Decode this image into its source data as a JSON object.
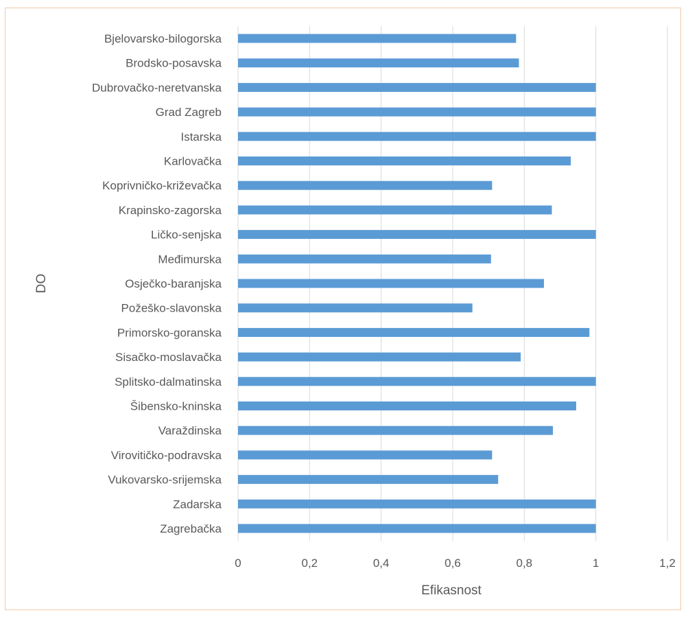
{
  "chart_data": {
    "type": "bar",
    "orientation": "horizontal",
    "title": "",
    "xlabel": "Efikasnost",
    "ylabel": "DO",
    "xlim": [
      0,
      1.2
    ],
    "xticks": [
      0,
      0.2,
      0.4,
      0.6,
      0.8,
      1,
      1.2
    ],
    "xtick_labels": [
      "0",
      "0,2",
      "0,4",
      "0,6",
      "0,8",
      "1",
      "1,2"
    ],
    "grid": "vertical",
    "bar_color": "#5b9bd5",
    "categories": [
      "Bjelovarsko-bilogorska",
      "Brodsko-posavska",
      "Dubrovačko-neretvanska",
      "Grad Zagreb",
      "Istarska",
      "Karlovačka",
      "Koprivničko-križevačka",
      "Krapinsko-zagorska",
      "Ličko-senjska",
      "Međimurska",
      "Osječko-baranjska",
      "Požeško-slavonska",
      "Primorsko-goranska",
      "Sisačko-moslavačka",
      "Splitsko-dalmatinska",
      "Šibensko-kninska",
      "Varaždinska",
      "Virovitičko-podravska",
      "Vukovarsko-srijemska",
      "Zadarska",
      "Zagrebačka"
    ],
    "values": [
      0.777,
      0.785,
      1,
      1,
      1,
      0.93,
      0.71,
      0.877,
      1,
      0.707,
      0.855,
      0.655,
      0.982,
      0.79,
      1,
      0.945,
      0.88,
      0.71,
      0.727,
      1,
      1
    ]
  }
}
